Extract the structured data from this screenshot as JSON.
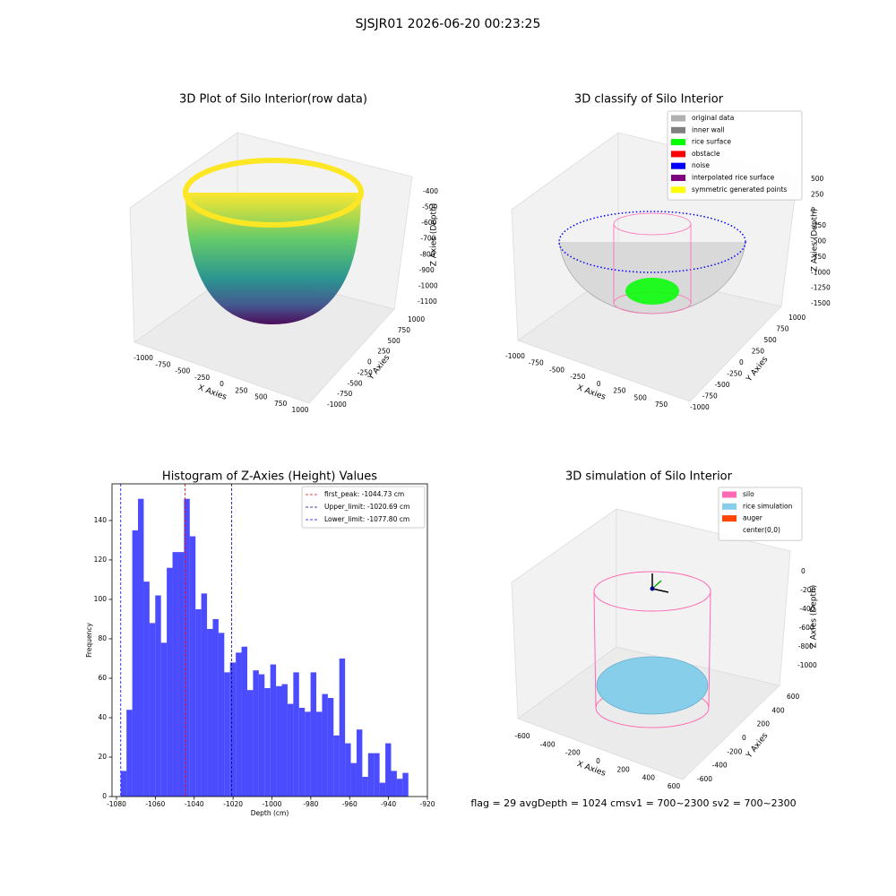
{
  "suptitle": "SJSJR01 2026-06-20 00:23:25",
  "footer": "flag = 29  avgDepth = 1024 cmsv1 = 700~2300  sv2 = 700~2300",
  "chart_data": [
    {
      "type": "surface3d",
      "title": "3D Plot of Silo Interior(row data)",
      "xlabel": "X Axies",
      "ylabel": "Y Axies",
      "zlabel": "Z Axies (Depth)",
      "xticks": [
        -1000,
        -750,
        -500,
        -250,
        0,
        250,
        500,
        750,
        1000
      ],
      "yticks": [
        -1000,
        -750,
        -500,
        -250,
        0,
        250,
        500,
        750,
        1000
      ],
      "zticks": [
        -400,
        -500,
        -600,
        -700,
        -800,
        -900,
        -1000,
        -1100
      ]
    },
    {
      "type": "classify3d",
      "title": "3D classify of Silo Interior",
      "xlabel": "X Axies",
      "ylabel": "Y Axies",
      "zlabel": "Z Axies (Depth)",
      "xticks": [
        -1000,
        -750,
        -500,
        -250,
        0,
        250,
        500,
        750
      ],
      "yticks": [
        -1000,
        -750,
        -500,
        -250,
        0,
        250,
        500,
        750,
        1000
      ],
      "zticks": [
        500,
        250,
        0,
        -250,
        -500,
        -750,
        -1000,
        -1250,
        -1500
      ],
      "legend": [
        {
          "name": "original data",
          "color": "#b0b0b0"
        },
        {
          "name": "inner wall",
          "color": "#808080"
        },
        {
          "name": "rice surface",
          "color": "#00ff00"
        },
        {
          "name": "obstacle",
          "color": "#ff0000"
        },
        {
          "name": "noise",
          "color": "#0000ff"
        },
        {
          "name": "interpolated rice surface",
          "color": "#800080"
        },
        {
          "name": "symmetric generated points",
          "color": "#ffff00"
        }
      ]
    },
    {
      "type": "histogram",
      "title": "Histogram of Z-Axies (Height) Values",
      "xlabel": "Depth (cm)",
      "ylabel": "Frequency",
      "color": "#0000ff",
      "alpha": 0.7,
      "bins": [
        -1077.8,
        -1074.84,
        -1071.88,
        -1068.92,
        -1065.96,
        -1063.0,
        -1060.04,
        -1057.08,
        -1054.12,
        -1051.16,
        -1048.2,
        -1045.24,
        -1042.28,
        -1039.32,
        -1036.36,
        -1033.4,
        -1030.44,
        -1027.48,
        -1024.52,
        -1021.56,
        -1018.6,
        -1015.64,
        -1012.68,
        -1009.72,
        -1006.76,
        -1003.8,
        -1000.84,
        -997.88,
        -994.92,
        -991.96,
        -989.0,
        -986.04,
        -983.08,
        -980.12,
        -977.16,
        -974.2,
        -971.24,
        -968.28,
        -965.32,
        -962.36,
        -959.4,
        -956.44,
        -953.48,
        -950.52,
        -947.56,
        -944.6,
        -941.64,
        -938.68,
        -935.72,
        -932.76,
        -929.8
      ],
      "values": [
        13,
        44,
        135,
        151,
        109,
        88,
        102,
        78,
        116,
        124,
        124,
        151,
        132,
        95,
        103,
        85,
        90,
        83,
        63,
        68,
        73,
        76,
        54,
        64,
        62,
        55,
        67,
        56,
        57,
        47,
        63,
        45,
        43,
        63,
        43,
        52,
        50,
        31,
        70,
        27,
        17,
        34,
        10,
        22,
        22,
        7,
        27,
        13,
        9,
        12
      ],
      "xlim": [
        -1082.3,
        -920
      ],
      "ylim": [
        0,
        158.6
      ],
      "xticks": [
        -1080,
        -1060,
        -1040,
        -1020,
        -1000,
        -980,
        -960,
        -940,
        -920
      ],
      "yticks": [
        0,
        20,
        40,
        60,
        80,
        100,
        120,
        140
      ],
      "vlines": [
        {
          "label": "first_peak: -1044.73 cm",
          "value": -1044.73,
          "color": "#ff0000"
        },
        {
          "label": "Upper_limit: -1020.69 cm",
          "value": -1020.69,
          "color": "#00008b"
        },
        {
          "label": "Lower_limit: -1077.80 cm",
          "value": -1077.8,
          "color": "#0000ff"
        }
      ]
    },
    {
      "type": "sim3d",
      "title": "3D simulation of Silo Interior",
      "xlabel": "X Axies",
      "ylabel": "Y Axies",
      "zlabel": "Z Axies (Depth)",
      "xticks": [
        -600,
        -400,
        -200,
        0,
        200,
        400,
        600
      ],
      "yticks": [
        -600,
        -400,
        -200,
        0,
        200,
        400,
        600
      ],
      "zticks": [
        0,
        -200,
        -400,
        -600,
        -800,
        -1000
      ],
      "legend": [
        {
          "name": "silo",
          "color": "#ff69b4"
        },
        {
          "name": "rice simulation",
          "color": "#87ceeb"
        },
        {
          "name": "auger",
          "color": "#ff4500"
        },
        {
          "name": "center(0,0)",
          "color": "#ffffff"
        }
      ]
    }
  ]
}
